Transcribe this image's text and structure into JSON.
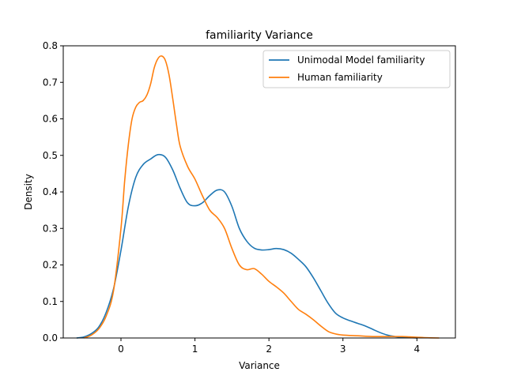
{
  "chart_data": {
    "type": "line",
    "title": "familiarity Variance",
    "xlabel": "Variance",
    "ylabel": "Density",
    "xlim": [
      -0.78,
      4.52
    ],
    "ylim": [
      0,
      0.8
    ],
    "xticks": [
      0,
      1,
      2,
      3,
      4
    ],
    "xtick_labels": [
      "0",
      "1",
      "2",
      "3",
      "4"
    ],
    "yticks": [
      0.0,
      0.1,
      0.2,
      0.3,
      0.4,
      0.5,
      0.6,
      0.7,
      0.8
    ],
    "ytick_labels": [
      "0.0",
      "0.1",
      "0.2",
      "0.3",
      "0.4",
      "0.5",
      "0.6",
      "0.7",
      "0.8"
    ],
    "grid": false,
    "legend_position": "top-right",
    "series": [
      {
        "name": "Unimodal Model familiarity",
        "color": "#1f77b4",
        "points": [
          [
            -0.6,
            0.0
          ],
          [
            -0.5,
            0.003
          ],
          [
            -0.4,
            0.012
          ],
          [
            -0.3,
            0.03
          ],
          [
            -0.2,
            0.07
          ],
          [
            -0.1,
            0.135
          ],
          [
            0.0,
            0.24
          ],
          [
            0.1,
            0.36
          ],
          [
            0.2,
            0.44
          ],
          [
            0.3,
            0.475
          ],
          [
            0.4,
            0.49
          ],
          [
            0.5,
            0.502
          ],
          [
            0.6,
            0.495
          ],
          [
            0.7,
            0.46
          ],
          [
            0.8,
            0.41
          ],
          [
            0.9,
            0.37
          ],
          [
            1.0,
            0.362
          ],
          [
            1.1,
            0.37
          ],
          [
            1.2,
            0.39
          ],
          [
            1.3,
            0.405
          ],
          [
            1.4,
            0.4
          ],
          [
            1.5,
            0.36
          ],
          [
            1.6,
            0.3
          ],
          [
            1.7,
            0.265
          ],
          [
            1.8,
            0.246
          ],
          [
            1.9,
            0.241
          ],
          [
            2.0,
            0.242
          ],
          [
            2.1,
            0.245
          ],
          [
            2.2,
            0.242
          ],
          [
            2.3,
            0.232
          ],
          [
            2.4,
            0.215
          ],
          [
            2.5,
            0.195
          ],
          [
            2.6,
            0.165
          ],
          [
            2.7,
            0.13
          ],
          [
            2.8,
            0.095
          ],
          [
            2.9,
            0.068
          ],
          [
            3.0,
            0.055
          ],
          [
            3.1,
            0.047
          ],
          [
            3.2,
            0.04
          ],
          [
            3.3,
            0.033
          ],
          [
            3.4,
            0.024
          ],
          [
            3.5,
            0.015
          ],
          [
            3.6,
            0.008
          ],
          [
            3.7,
            0.004
          ],
          [
            3.8,
            0.002
          ],
          [
            4.0,
            0.0
          ]
        ]
      },
      {
        "name": "Human familiarity",
        "color": "#ff7f0e",
        "points": [
          [
            -0.5,
            0.0
          ],
          [
            -0.4,
            0.008
          ],
          [
            -0.3,
            0.025
          ],
          [
            -0.2,
            0.06
          ],
          [
            -0.1,
            0.13
          ],
          [
            0.0,
            0.3
          ],
          [
            0.05,
            0.43
          ],
          [
            0.1,
            0.53
          ],
          [
            0.15,
            0.6
          ],
          [
            0.2,
            0.632
          ],
          [
            0.25,
            0.645
          ],
          [
            0.3,
            0.65
          ],
          [
            0.35,
            0.665
          ],
          [
            0.4,
            0.695
          ],
          [
            0.45,
            0.74
          ],
          [
            0.5,
            0.765
          ],
          [
            0.55,
            0.772
          ],
          [
            0.6,
            0.76
          ],
          [
            0.65,
            0.72
          ],
          [
            0.7,
            0.655
          ],
          [
            0.75,
            0.585
          ],
          [
            0.8,
            0.525
          ],
          [
            0.9,
            0.47
          ],
          [
            1.0,
            0.435
          ],
          [
            1.1,
            0.39
          ],
          [
            1.2,
            0.35
          ],
          [
            1.3,
            0.33
          ],
          [
            1.4,
            0.3
          ],
          [
            1.5,
            0.245
          ],
          [
            1.6,
            0.2
          ],
          [
            1.7,
            0.187
          ],
          [
            1.8,
            0.19
          ],
          [
            1.9,
            0.175
          ],
          [
            2.0,
            0.155
          ],
          [
            2.1,
            0.14
          ],
          [
            2.2,
            0.123
          ],
          [
            2.3,
            0.1
          ],
          [
            2.4,
            0.078
          ],
          [
            2.5,
            0.065
          ],
          [
            2.6,
            0.05
          ],
          [
            2.7,
            0.033
          ],
          [
            2.8,
            0.018
          ],
          [
            2.9,
            0.011
          ],
          [
            3.0,
            0.008
          ],
          [
            3.2,
            0.006
          ],
          [
            3.4,
            0.004
          ],
          [
            3.6,
            0.004
          ],
          [
            3.8,
            0.004
          ],
          [
            3.9,
            0.003
          ],
          [
            4.0,
            0.002
          ],
          [
            4.1,
            0.001
          ],
          [
            4.3,
            0.0
          ]
        ]
      }
    ]
  }
}
